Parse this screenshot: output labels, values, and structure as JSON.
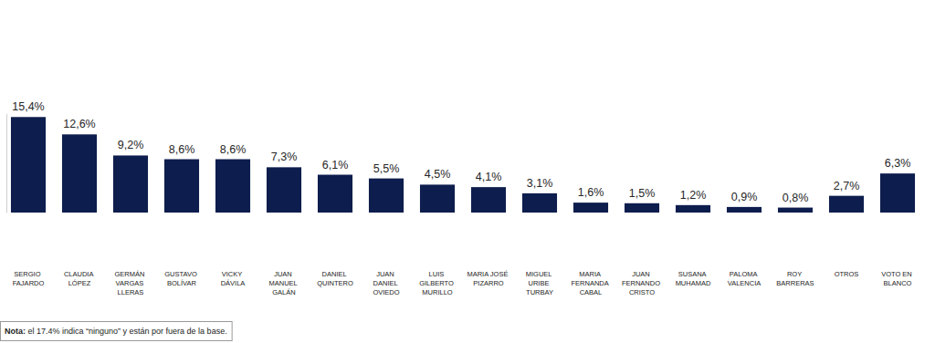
{
  "chart_data": {
    "type": "bar",
    "categories": [
      "SERGIO FAJARDO",
      "CLAUDIA LÓPEZ",
      "GERMÁN VARGAS LLERAS",
      "GUSTAVO BOLÍVAR",
      "VICKY DÁVILA",
      "JUAN MANUEL GALÁN",
      "DANIEL QUINTERO",
      "JUAN DANIEL OVIEDO",
      "LUIS GILBERTO MURILLO",
      "MARIA JOSÉ PIZARRO",
      "MIGUEL URIBE TURBAY",
      "MARIA FERNANDA CABAL",
      "JUAN FERNANDO CRISTO",
      "SUSANA MUHAMAD",
      "PALOMA VALENCIA",
      "ROY BARRERAS",
      "OTROS",
      "VOTO EN BLANCO"
    ],
    "values": [
      15.4,
      12.6,
      9.2,
      8.6,
      8.6,
      7.3,
      6.1,
      5.5,
      4.5,
      4.1,
      3.1,
      1.6,
      1.5,
      1.2,
      0.9,
      0.8,
      2.7,
      6.3
    ],
    "value_labels": [
      "15,4%",
      "12,6%",
      "9,2%",
      "8,6%",
      "8,6%",
      "7,3%",
      "6,1%",
      "5,5%",
      "4,5%",
      "4,1%",
      "3,1%",
      "1,6%",
      "1,5%",
      "1,2%",
      "0,9%",
      "0,8%",
      "2,7%",
      "6,3%"
    ],
    "color": "#0d1d4d",
    "ylim": [
      0,
      16
    ],
    "data_labels": true,
    "tick_labels": "x",
    "annotations": [
      "Nota: el 17.4% indica “ninguno” y están por fuera de la base."
    ]
  }
}
